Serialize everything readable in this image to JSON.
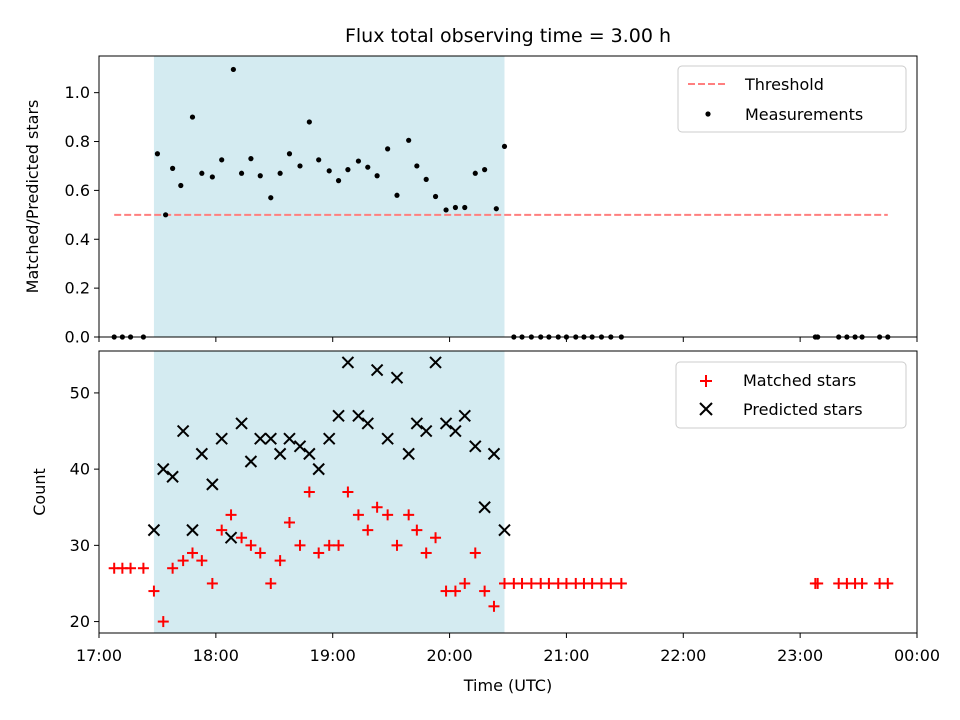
{
  "chart_data": [
    {
      "type": "scatter",
      "title": "Flux total observing time = 3.00 h",
      "ylabel": "Matched/Predicted stars",
      "xlabel": "",
      "xlim": [
        17.0,
        24.0
      ],
      "ylim": [
        0.0,
        1.15
      ],
      "yticks": [
        0.0,
        0.2,
        0.4,
        0.6,
        0.8,
        1.0
      ],
      "ytick_labels": [
        "0.0",
        "0.2",
        "0.4",
        "0.6",
        "0.8",
        "1.0"
      ],
      "shaded_span": [
        17.47,
        20.47
      ],
      "shade_color": "#d4ebf1",
      "legend_position": "top-right",
      "series": [
        {
          "name": "Threshold",
          "kind": "dashed-line",
          "color": "#ff7f7f",
          "x": [
            17.13,
            23.75
          ],
          "y": [
            0.5,
            0.5
          ]
        },
        {
          "name": "Measurements",
          "kind": "dot",
          "color": "#000000",
          "x": [
            17.13,
            17.2,
            17.27,
            17.38,
            17.5,
            17.57,
            17.63,
            17.7,
            17.8,
            17.88,
            17.97,
            18.05,
            18.15,
            18.22,
            18.3,
            18.38,
            18.47,
            18.55,
            18.63,
            18.72,
            18.8,
            18.88,
            18.97,
            19.05,
            19.13,
            19.22,
            19.3,
            19.38,
            19.47,
            19.55,
            19.65,
            19.72,
            19.8,
            19.88,
            19.97,
            20.05,
            20.13,
            20.22,
            20.3,
            20.4,
            20.47,
            20.55,
            20.62,
            20.7,
            20.78,
            20.85,
            20.93,
            21.0,
            21.08,
            21.15,
            21.22,
            21.3,
            21.38,
            21.47,
            23.13,
            23.15,
            23.33,
            23.4,
            23.47,
            23.53,
            23.68,
            23.75
          ],
          "y": [
            0.0,
            0.0,
            0.0,
            0.0,
            0.75,
            0.5,
            0.69,
            0.62,
            0.9,
            0.67,
            0.655,
            0.725,
            1.095,
            0.67,
            0.73,
            0.66,
            0.57,
            0.67,
            0.75,
            0.7,
            0.88,
            0.725,
            0.68,
            0.64,
            0.685,
            0.72,
            0.695,
            0.66,
            0.77,
            0.58,
            0.805,
            0.7,
            0.645,
            0.575,
            0.52,
            0.53,
            0.53,
            0.67,
            0.685,
            0.525,
            0.78,
            0.0,
            0.0,
            0.0,
            0.0,
            0.0,
            0.0,
            0.0,
            0.0,
            0.0,
            0.0,
            0.0,
            0.0,
            0.0,
            0.0,
            0.0,
            0.0,
            0.0,
            0.0,
            0.0,
            0.0,
            0.0
          ]
        }
      ]
    },
    {
      "type": "scatter",
      "title": "",
      "ylabel": "Count",
      "xlabel": "Time (UTC)",
      "xlim": [
        17.0,
        24.0
      ],
      "ylim": [
        18.5,
        55.5
      ],
      "yticks": [
        20,
        30,
        40,
        50
      ],
      "ytick_labels": [
        "20",
        "30",
        "40",
        "50"
      ],
      "xticks": [
        17,
        18,
        19,
        20,
        21,
        22,
        23,
        24
      ],
      "xtick_labels": [
        "17:00",
        "18:00",
        "19:00",
        "20:00",
        "21:00",
        "22:00",
        "23:00",
        "00:00"
      ],
      "shaded_span": [
        17.47,
        20.47
      ],
      "shade_color": "#d4ebf1",
      "legend_position": "top-right",
      "series": [
        {
          "name": "Matched stars",
          "kind": "plus",
          "color": "#ff0000",
          "x": [
            17.13,
            17.2,
            17.27,
            17.38,
            17.47,
            17.55,
            17.63,
            17.72,
            17.8,
            17.88,
            17.97,
            18.05,
            18.13,
            18.22,
            18.3,
            18.38,
            18.47,
            18.55,
            18.63,
            18.72,
            18.8,
            18.88,
            18.97,
            19.05,
            19.13,
            19.22,
            19.3,
            19.38,
            19.47,
            19.55,
            19.65,
            19.72,
            19.8,
            19.88,
            19.97,
            20.05,
            20.13,
            20.22,
            20.3,
            20.38,
            20.47,
            20.55,
            20.62,
            20.7,
            20.78,
            20.85,
            20.93,
            21.0,
            21.08,
            21.15,
            21.22,
            21.3,
            21.38,
            21.47,
            23.13,
            23.15,
            23.33,
            23.4,
            23.47,
            23.53,
            23.68,
            23.75
          ],
          "y": [
            27,
            27,
            27,
            27,
            24,
            20,
            27,
            28,
            29,
            28,
            25,
            32,
            34,
            31,
            30,
            29,
            25,
            28,
            33,
            30,
            37,
            29,
            30,
            30,
            37,
            34,
            32,
            35,
            34,
            30,
            34,
            32,
            29,
            31,
            24,
            24,
            25,
            29,
            24,
            22,
            25,
            25,
            25,
            25,
            25,
            25,
            25,
            25,
            25,
            25,
            25,
            25,
            25,
            25,
            25,
            25,
            25,
            25,
            25,
            25,
            25,
            25
          ]
        },
        {
          "name": "Predicted stars",
          "kind": "x",
          "color": "#000000",
          "x": [
            17.47,
            17.55,
            17.63,
            17.72,
            17.8,
            17.88,
            17.97,
            18.05,
            18.13,
            18.22,
            18.3,
            18.38,
            18.47,
            18.55,
            18.63,
            18.72,
            18.8,
            18.88,
            18.97,
            19.05,
            19.13,
            19.22,
            19.3,
            19.38,
            19.47,
            19.55,
            19.65,
            19.72,
            19.8,
            19.88,
            19.97,
            20.05,
            20.13,
            20.22,
            20.3,
            20.38,
            20.47
          ],
          "y": [
            32,
            40,
            39,
            45,
            32,
            42,
            38,
            44,
            31,
            46,
            41,
            44,
            44,
            42,
            44,
            43,
            42,
            40,
            44,
            47,
            54,
            47,
            46,
            53,
            44,
            52,
            42,
            46,
            45,
            54,
            46,
            45,
            47,
            43,
            35,
            42,
            32
          ]
        }
      ]
    }
  ]
}
